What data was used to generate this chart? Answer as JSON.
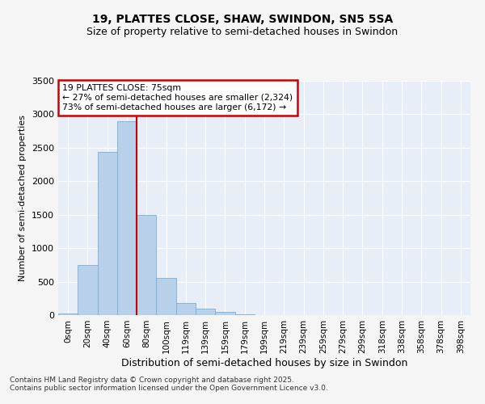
{
  "title_line1": "19, PLATTES CLOSE, SHAW, SWINDON, SN5 5SA",
  "title_line2": "Size of property relative to semi-detached houses in Swindon",
  "xlabel": "Distribution of semi-detached houses by size in Swindon",
  "ylabel": "Number of semi-detached properties",
  "categories": [
    "0sqm",
    "20sqm",
    "40sqm",
    "60sqm",
    "80sqm",
    "100sqm",
    "119sqm",
    "139sqm",
    "159sqm",
    "179sqm",
    "199sqm",
    "219sqm",
    "239sqm",
    "259sqm",
    "279sqm",
    "299sqm",
    "318sqm",
    "338sqm",
    "358sqm",
    "378sqm",
    "398sqm"
  ],
  "values": [
    30,
    750,
    2440,
    2900,
    1500,
    550,
    185,
    95,
    50,
    10,
    5,
    3,
    2,
    1,
    0,
    0,
    0,
    0,
    0,
    0,
    0
  ],
  "bar_color": "#b8d0ea",
  "bar_edge_color": "#7aafd4",
  "vline_color": "#cc0000",
  "annotation_title": "19 PLATTES CLOSE: 75sqm",
  "annotation_line1": "← 27% of semi-detached houses are smaller (2,324)",
  "annotation_line2": "73% of semi-detached houses are larger (6,172) →",
  "annotation_box_edge_color": "#cc0000",
  "ylim": [
    0,
    3500
  ],
  "yticks": [
    0,
    500,
    1000,
    1500,
    2000,
    2500,
    3000,
    3500
  ],
  "footer_line1": "Contains HM Land Registry data © Crown copyright and database right 2025.",
  "footer_line2": "Contains public sector information licensed under the Open Government Licence v3.0.",
  "bg_color": "#f5f5f5",
  "plot_bg_color": "#e8eef8",
  "grid_color": "#ffffff"
}
